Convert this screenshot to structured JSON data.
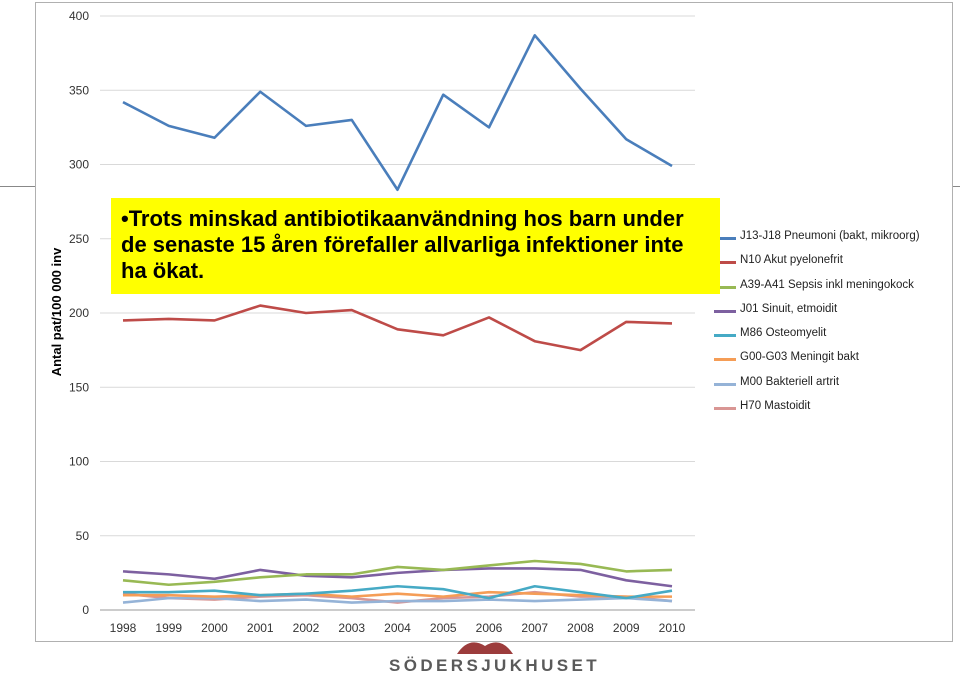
{
  "callout": {
    "bullet": "•",
    "text": "Trots minskad antibiotikaanvändning hos barn under de senaste 15 åren förefaller allvarliga infektioner inte ha ökat."
  },
  "logo": {
    "text": "SÖDERSJUKHUSET",
    "color": "#8b1a1a"
  },
  "chart_data": {
    "type": "line",
    "xlabel": "",
    "ylabel": "Antal pat/100 000 inv",
    "x": [
      1998,
      1999,
      2000,
      2001,
      2002,
      2003,
      2004,
      2005,
      2006,
      2007,
      2008,
      2009,
      2010
    ],
    "ylim": [
      0,
      400
    ],
    "yticks": [
      0,
      50,
      100,
      150,
      200,
      250,
      300,
      350,
      400
    ],
    "grid": "horizontal",
    "legend_position": "right",
    "series": [
      {
        "name": "J13-J18 Pneumoni (bakt, mikroorg)",
        "color": "#4a7ebb",
        "values": [
          342,
          326,
          318,
          349,
          326,
          330,
          283,
          347,
          325,
          387,
          351,
          317,
          299
        ]
      },
      {
        "name": "N10 Akut pyelonefrit",
        "color": "#be4b48",
        "values": [
          195,
          196,
          195,
          205,
          200,
          202,
          189,
          185,
          197,
          181,
          175,
          194,
          193
        ]
      },
      {
        "name": "A39-A41 Sepsis inkl meningokock",
        "color": "#98b954",
        "values": [
          20,
          17,
          19,
          22,
          24,
          24,
          29,
          27,
          30,
          33,
          31,
          26,
          27
        ]
      },
      {
        "name": "J01 Sinuit, etmoidit",
        "color": "#7d60a0",
        "values": [
          26,
          24,
          21,
          27,
          23,
          22,
          25,
          27,
          28,
          28,
          27,
          20,
          16
        ]
      },
      {
        "name": "M86 Osteomyelit",
        "color": "#46aac5",
        "values": [
          12,
          12,
          13,
          10,
          11,
          13,
          16,
          14,
          8,
          16,
          12,
          8,
          13
        ]
      },
      {
        "name": "G00-G03 Meningit bakt",
        "color": "#f59d56",
        "values": [
          10,
          10,
          9,
          10,
          11,
          9,
          11,
          9,
          12,
          11,
          10,
          9,
          9
        ]
      },
      {
        "name": "M00 Bakteriell artrit",
        "color": "#95b3d7",
        "values": [
          5,
          8,
          8,
          6,
          7,
          5,
          6,
          6,
          7,
          6,
          7,
          8,
          6
        ]
      },
      {
        "name": "H70 Mastoidit",
        "color": "#d99694",
        "values": [
          11,
          8,
          7,
          9,
          10,
          8,
          5,
          8,
          9,
          12,
          9,
          9,
          6
        ]
      }
    ]
  }
}
